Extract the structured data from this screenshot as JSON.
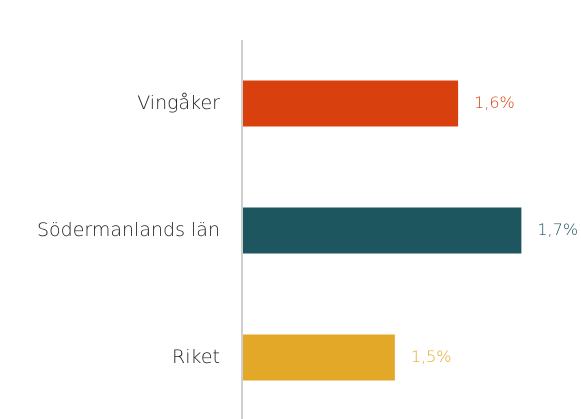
{
  "chart_data": {
    "type": "hbar",
    "categories": [
      "Vingåker",
      "Södermanlands län",
      "Riket"
    ],
    "values": [
      1.6,
      1.7,
      1.5
    ],
    "value_labels": [
      "1,6%",
      "1,7%",
      "1,5%"
    ],
    "colors": [
      "#d8400e",
      "#1e5660",
      "#e3a827"
    ],
    "xlim": [
      1.26,
      1.78
    ]
  }
}
